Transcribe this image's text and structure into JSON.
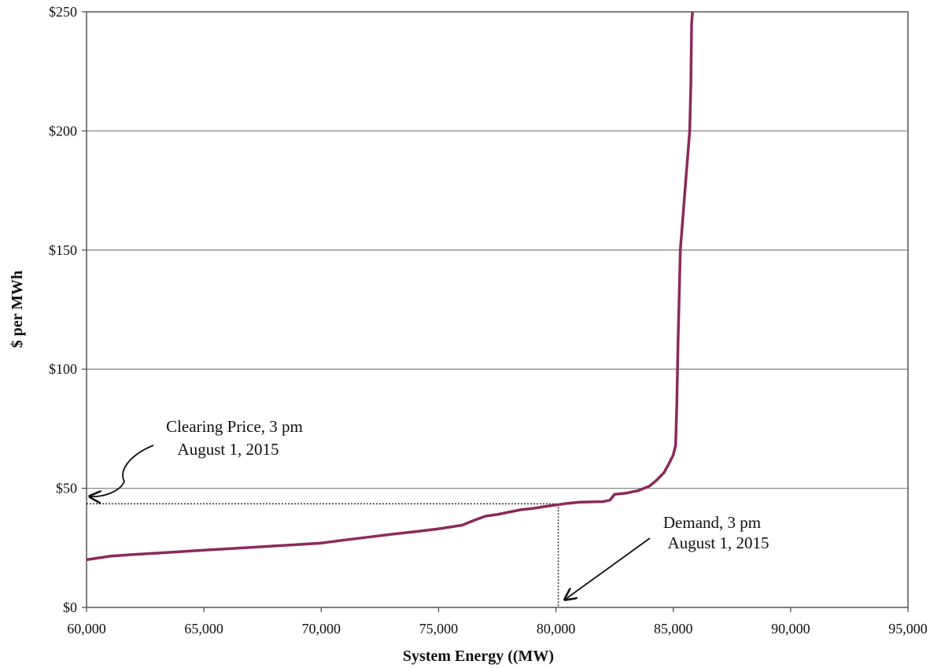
{
  "chart_data": {
    "type": "line",
    "title": "",
    "xlabel": "System Energy ((MW)",
    "ylabel": "$ per MWh",
    "xlim": [
      60000,
      95000
    ],
    "ylim": [
      0,
      250
    ],
    "x_ticks": [
      60000,
      65000,
      70000,
      75000,
      80000,
      85000,
      90000,
      95000
    ],
    "x_tick_labels": [
      "60,000",
      "65,000",
      "70,000",
      "75,000",
      "80,000",
      "85,000",
      "90,000",
      "95,000"
    ],
    "y_ticks": [
      0,
      50,
      100,
      150,
      200,
      250
    ],
    "y_tick_labels": [
      "$0",
      "$50",
      "$100",
      "$150",
      "$200",
      "$250"
    ],
    "grid": "horizontal",
    "series_color": "#8b2a5a",
    "series": [
      {
        "name": "",
        "points": [
          [
            60000,
            20
          ],
          [
            61000,
            21.5
          ],
          [
            62000,
            22.2
          ],
          [
            63000,
            22.8
          ],
          [
            64000,
            23.4
          ],
          [
            65000,
            24
          ],
          [
            66000,
            24.6
          ],
          [
            67000,
            25.2
          ],
          [
            68000,
            25.8
          ],
          [
            69000,
            26.4
          ],
          [
            70000,
            27
          ],
          [
            71000,
            28.3
          ],
          [
            72000,
            29.5
          ],
          [
            73000,
            30.7
          ],
          [
            74000,
            31.8
          ],
          [
            75000,
            33
          ],
          [
            76000,
            34.5
          ],
          [
            76500,
            36.5
          ],
          [
            77000,
            38.3
          ],
          [
            77500,
            39
          ],
          [
            78000,
            40
          ],
          [
            78500,
            41
          ],
          [
            79000,
            41.5
          ],
          [
            79500,
            42.3
          ],
          [
            80000,
            43
          ],
          [
            80500,
            43.7
          ],
          [
            81000,
            44.2
          ],
          [
            81500,
            44.3
          ],
          [
            82000,
            44.4
          ],
          [
            82300,
            45
          ],
          [
            82500,
            47.5
          ],
          [
            83000,
            48
          ],
          [
            83500,
            49
          ],
          [
            84000,
            51
          ],
          [
            84300,
            53.5
          ],
          [
            84600,
            56.5
          ],
          [
            84800,
            60
          ],
          [
            85000,
            64
          ],
          [
            85100,
            68
          ],
          [
            85150,
            85
          ],
          [
            85200,
            110
          ],
          [
            85300,
            150
          ],
          [
            85500,
            175
          ],
          [
            85700,
            200
          ],
          [
            85750,
            220
          ],
          [
            85780,
            245
          ],
          [
            85820,
            250
          ]
        ]
      }
    ],
    "clearing_point": {
      "x": 80100,
      "y": 43.5
    },
    "annotations": [
      {
        "lines": [
          "Clearing Price, 3 pm",
          "August 1, 2015"
        ]
      },
      {
        "lines": [
          "Demand, 3 pm",
          "August 1, 2015"
        ]
      }
    ]
  }
}
